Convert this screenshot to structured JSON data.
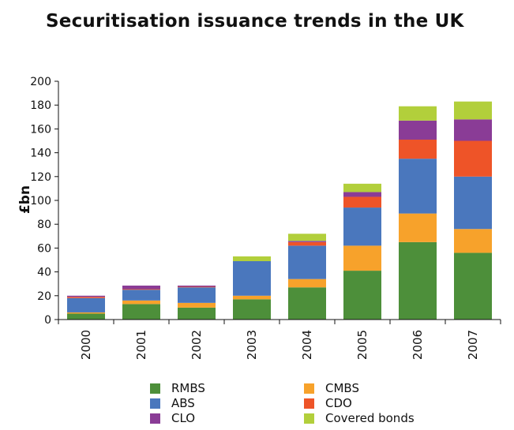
{
  "chart_data": {
    "type": "bar",
    "stacked": true,
    "title": "Securitisation issuance trends in the UK",
    "xlabel": "",
    "ylabel": "£bn",
    "ylim": [
      0,
      200
    ],
    "yticks": [
      0,
      20,
      40,
      60,
      80,
      100,
      120,
      140,
      160,
      180,
      200
    ],
    "categories": [
      "2000",
      "2001",
      "2002",
      "2003",
      "2004",
      "2005",
      "2006",
      "2007"
    ],
    "series": [
      {
        "name": "RMBS",
        "color": "#4d8f3a",
        "values": [
          5,
          13,
          10,
          17,
          27,
          41,
          65,
          56
        ]
      },
      {
        "name": "CMBS",
        "color": "#f7a22b",
        "values": [
          1,
          3,
          4,
          3,
          7,
          21,
          24,
          20
        ]
      },
      {
        "name": "ABS",
        "color": "#4a77bd",
        "values": [
          12,
          9,
          13,
          29,
          28,
          32,
          46,
          44
        ]
      },
      {
        "name": "CDO",
        "color": "#ee5428",
        "values": [
          1,
          0.5,
          0.5,
          0,
          3,
          9,
          16,
          30
        ]
      },
      {
        "name": "CLO",
        "color": "#8a3c96",
        "values": [
          1,
          3,
          1,
          0,
          1,
          4,
          16,
          18
        ]
      },
      {
        "name": "Covered bonds",
        "color": "#b2cf3b",
        "values": [
          0,
          0,
          0,
          4,
          6,
          7,
          12,
          15
        ]
      }
    ],
    "legend_position": "bottom",
    "grid": false
  }
}
